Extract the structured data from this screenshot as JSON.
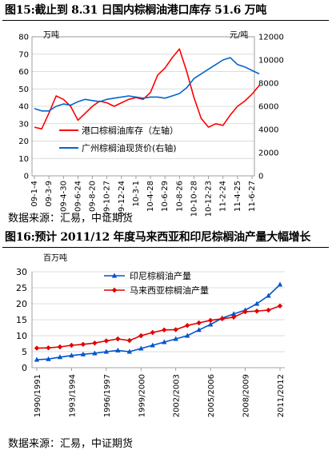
{
  "figures": [
    {
      "title": "图15:截止到 8.31 日国内棕榈油港口库存 51.6 万吨",
      "source": "数据来源：汇易，中证期货"
    },
    {
      "title": "图16:预计 2011/12 年度马来西亚和印尼棕榈油产量大幅增长",
      "source": "数据来源：汇易，中证期货"
    }
  ],
  "chart_data": [
    {
      "type": "line",
      "title": "",
      "unit_left": "万吨",
      "unit_right": "元/吨",
      "x_labels": [
        "09-1-4",
        "09-3-9",
        "09-4-30",
        "09-6-24",
        "09-8-20",
        "09-10-27",
        "09-12-24",
        "10-3-1",
        "10-4-28",
        "10-6-29",
        "10-8-26",
        "10-10-28",
        "10-12-23",
        "11-2-24",
        "11-4-25",
        "11-6-27"
      ],
      "ylim_left": [
        0,
        80
      ],
      "yticks_left": [
        0,
        10,
        20,
        30,
        40,
        50,
        60,
        70,
        80
      ],
      "ylim_right": [
        0,
        12000
      ],
      "yticks_right": [
        0,
        2000,
        4000,
        6000,
        8000,
        10000,
        12000
      ],
      "legend": "center-left",
      "colors": {
        "stock": "#ff0000",
        "price": "#0066cc"
      },
      "series": [
        {
          "name": "港口棕榈油库存（左轴）",
          "axis": "left",
          "x": [
            0,
            0.5,
            1,
            1.5,
            2,
            2.5,
            3,
            3.5,
            4,
            4.5,
            5,
            5.5,
            6,
            6.5,
            7,
            7.5,
            8,
            8.5,
            9,
            9.5,
            10,
            10.5,
            11,
            11.5,
            12,
            12.5,
            13,
            13.5,
            14,
            14.5,
            15,
            15.5
          ],
          "values": [
            28,
            27,
            36,
            46,
            44,
            40,
            32,
            36,
            40,
            43,
            42,
            40,
            42,
            44,
            45,
            44,
            48,
            58,
            62,
            68,
            73,
            60,
            45,
            33,
            28,
            30,
            29,
            35,
            40,
            43,
            47,
            52
          ]
        },
        {
          "name": "广州棕榈油现货价(右轴)",
          "axis": "right",
          "x": [
            0,
            0.5,
            1,
            1.5,
            2,
            2.5,
            3,
            3.5,
            4,
            4.5,
            5,
            5.5,
            6,
            6.5,
            7,
            7.5,
            8,
            8.5,
            9,
            9.5,
            10,
            10.5,
            11,
            11.5,
            12,
            12.5,
            13,
            13.5,
            14,
            14.5,
            15,
            15.5
          ],
          "values": [
            5800,
            5600,
            5600,
            6000,
            6200,
            6100,
            6400,
            6600,
            6500,
            6400,
            6600,
            6700,
            6800,
            6900,
            6800,
            6700,
            6800,
            6800,
            6700,
            6900,
            7100,
            7600,
            8400,
            8800,
            9200,
            9600,
            10000,
            10200,
            9600,
            9400,
            9100,
            8800
          ]
        }
      ]
    },
    {
      "type": "line",
      "title": "",
      "unit": "百万吨",
      "ylim": [
        0,
        30
      ],
      "yticks": [
        0,
        5,
        10,
        15,
        20,
        25,
        30
      ],
      "x_labels": [
        "1990/1991",
        "1993/1994",
        "1996/1997",
        "1999/2000",
        "2002/2003",
        "2005/2006",
        "2008/2009",
        "2011/2012"
      ],
      "legend": "top-center",
      "colors": {
        "indonesia": "#0055cc",
        "malaysia": "#e00000"
      },
      "x": [
        "1990/1991",
        "1991/1992",
        "1992/1993",
        "1993/1994",
        "1994/1995",
        "1995/1996",
        "1996/1997",
        "1997/1998",
        "1998/1999",
        "1999/2000",
        "2000/2001",
        "2001/2002",
        "2002/2003",
        "2003/2004",
        "2004/2005",
        "2005/2006",
        "2006/2007",
        "2007/2008",
        "2008/2009",
        "2009/2010",
        "2010/2011",
        "2011/2012"
      ],
      "series": [
        {
          "name": "印尼棕榈油产量",
          "values": [
            2.5,
            2.7,
            3.3,
            3.8,
            4.2,
            4.5,
            5.0,
            5.4,
            5.0,
            6.0,
            7.0,
            8.0,
            9.0,
            10.0,
            11.8,
            13.5,
            15.5,
            16.8,
            18.0,
            20.0,
            22.5,
            26.0
          ]
        },
        {
          "name": "马来西亚棕榈油产量",
          "values": [
            6.1,
            6.2,
            6.5,
            7.0,
            7.3,
            7.7,
            8.4,
            9.0,
            8.5,
            10.0,
            11.0,
            11.8,
            11.9,
            13.2,
            14.0,
            14.8,
            15.3,
            15.8,
            17.5,
            17.7,
            18.0,
            19.3
          ]
        }
      ]
    }
  ]
}
